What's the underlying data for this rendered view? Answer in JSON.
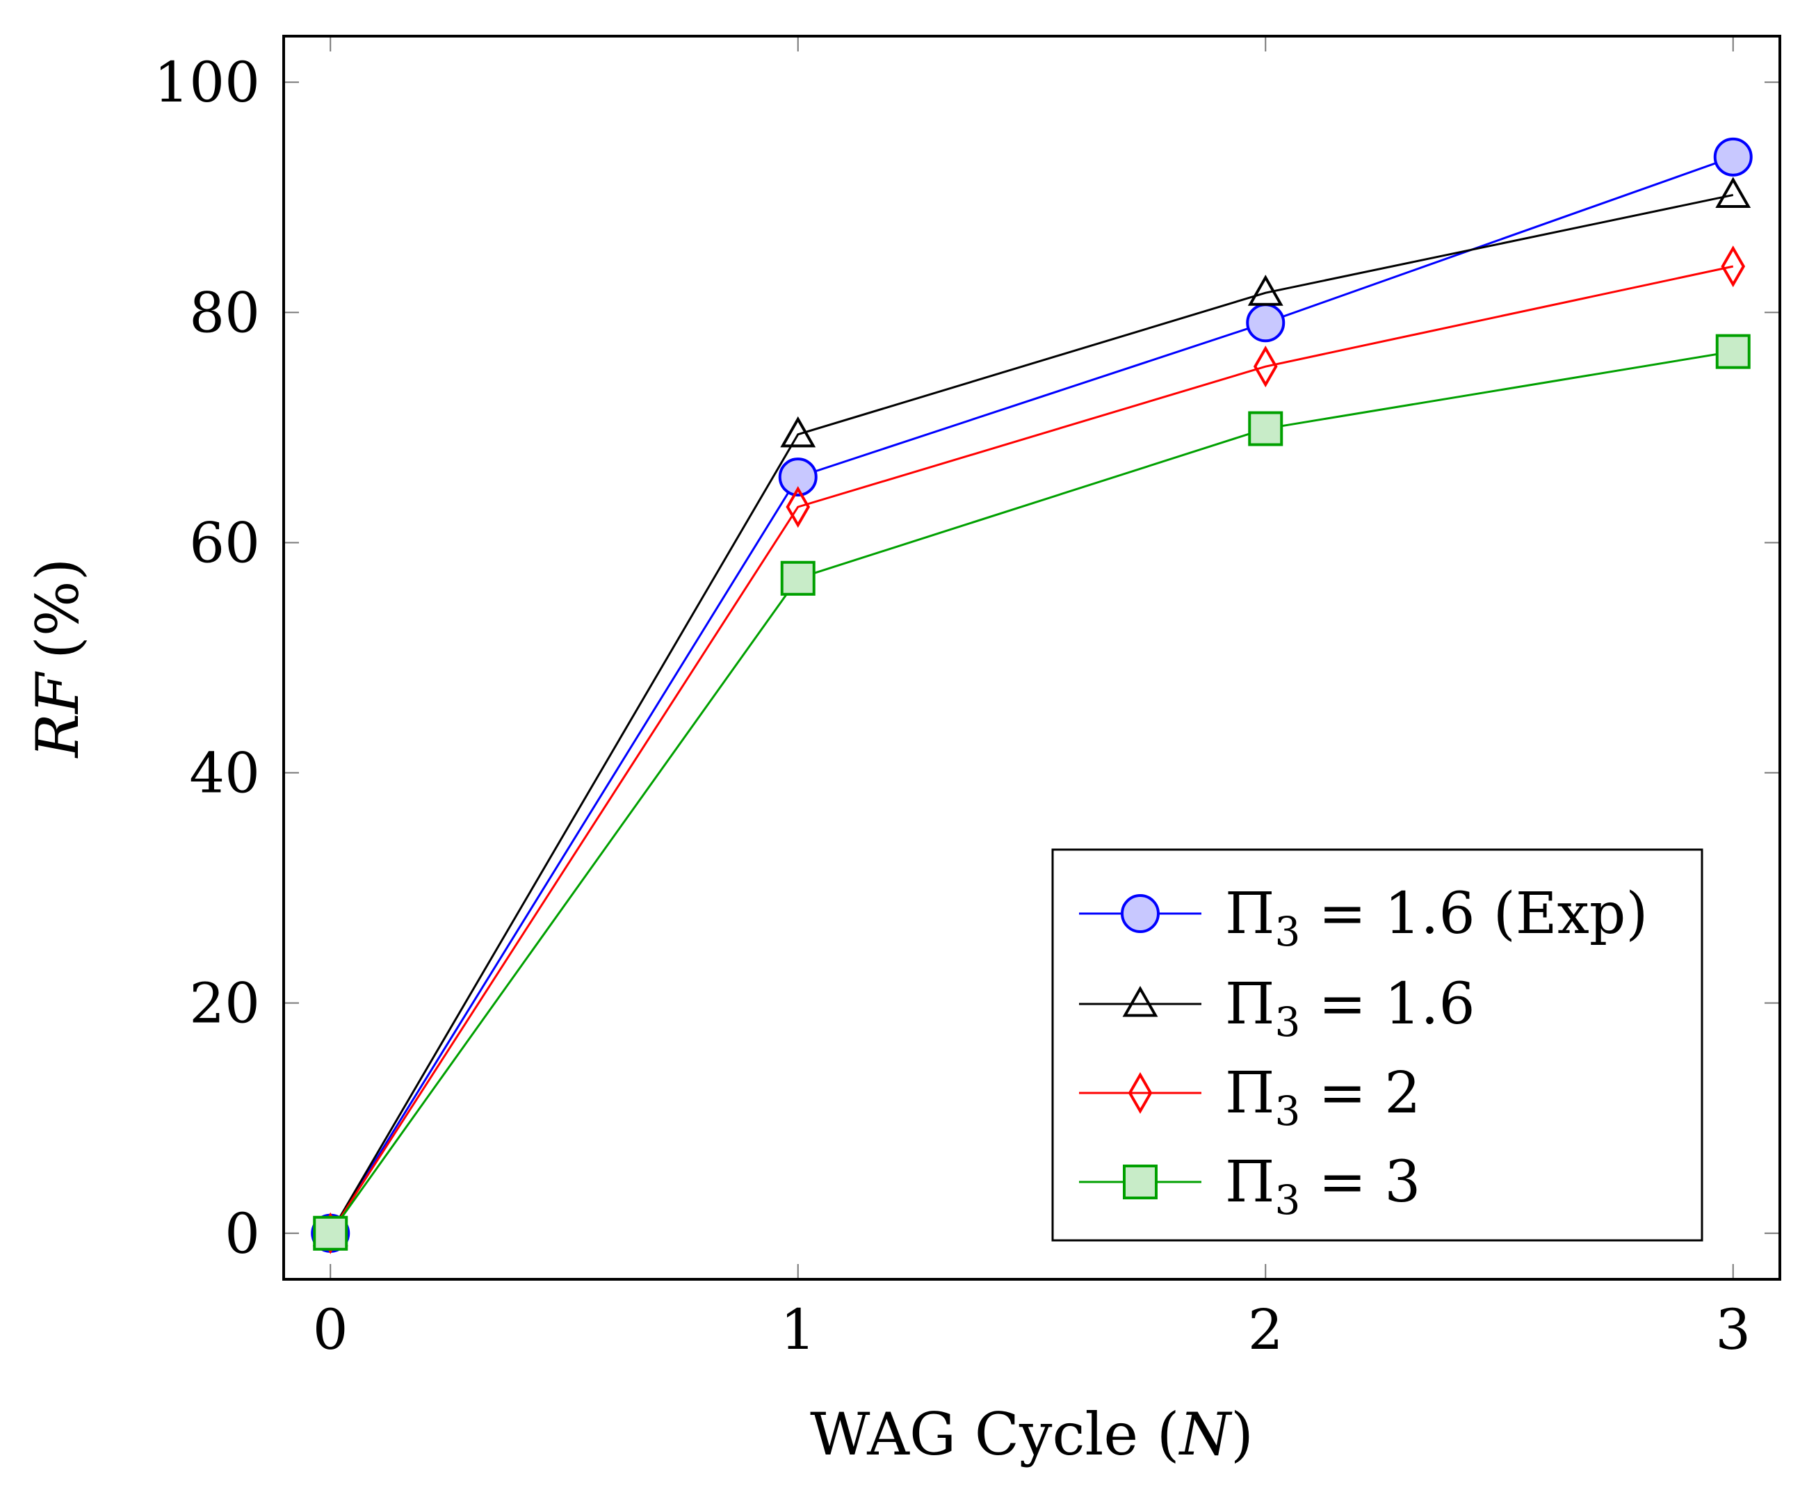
{
  "chart_data": {
    "type": "line",
    "title": "",
    "xlabel_text": "WAG Cycle (",
    "xlabel_var": "N",
    "xlabel_close": ")",
    "ylabel_var": "RF",
    "ylabel_unit": "(%)",
    "x": [
      0,
      1,
      2,
      3
    ],
    "xlim": [
      -0.1,
      3.1
    ],
    "ylim": [
      -4,
      104
    ],
    "xticks": [
      "0",
      "1",
      "2",
      "3"
    ],
    "yticks": [
      "0",
      "20",
      "40",
      "60",
      "80",
      "100"
    ],
    "legend_position": "bottom-right",
    "series": [
      {
        "name": "Π3 = 1.6 (Exp)",
        "label_base": "Π",
        "label_sub": "3",
        "label_rest": " = 1.6 (Exp)",
        "marker": "circle",
        "color": "#0000ff",
        "fill": "#c8c8ff",
        "values": [
          0,
          65.7,
          79.1,
          93.5
        ]
      },
      {
        "name": "Π3 = 1.6",
        "label_base": "Π",
        "label_sub": "3",
        "label_rest": " = 1.6",
        "marker": "triangle",
        "color": "#000000",
        "fill": "none",
        "values": [
          0,
          69.4,
          81.7,
          90.2
        ]
      },
      {
        "name": "Π3 = 2",
        "label_base": "Π",
        "label_sub": "3",
        "label_rest": " = 2",
        "marker": "diamond",
        "color": "#ff0000",
        "fill": "none",
        "values": [
          0,
          63.1,
          75.3,
          84.0
        ]
      },
      {
        "name": "Π3 = 3",
        "label_base": "Π",
        "label_sub": "3",
        "label_rest": " = 3",
        "marker": "square",
        "color": "#00a000",
        "fill": "#c8ecc8",
        "values": [
          0,
          56.9,
          69.9,
          76.6
        ]
      }
    ]
  }
}
